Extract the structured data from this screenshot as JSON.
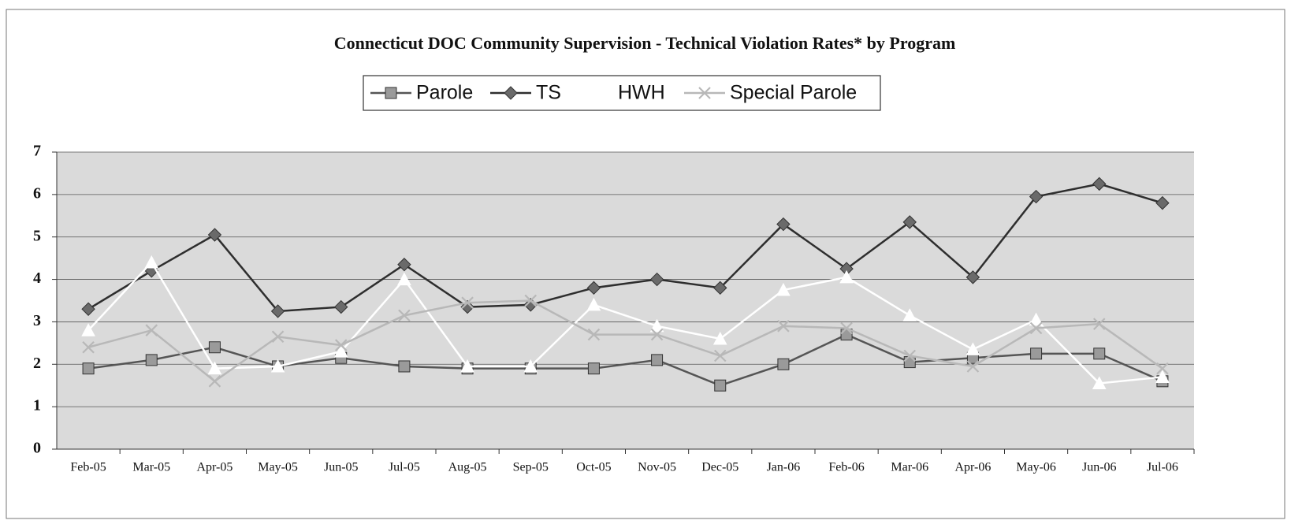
{
  "chart_data": {
    "type": "line",
    "title": "Connecticut DOC Community Supervision - Technical Violation Rates* by Program",
    "categories": [
      "Feb-05",
      "Mar-05",
      "Apr-05",
      "May-05",
      "Jun-05",
      "Jul-05",
      "Aug-05",
      "Sep-05",
      "Oct-05",
      "Nov-05",
      "Dec-05",
      "Jan-06",
      "Feb-06",
      "Mar-06",
      "Apr-06",
      "May-06",
      "Jun-06",
      "Jul-06"
    ],
    "series": [
      {
        "name": "Parole",
        "color": "#555555",
        "marker": "square",
        "marker_color": "#9a9a9a",
        "values": [
          1.9,
          2.1,
          2.4,
          1.95,
          2.15,
          1.95,
          1.9,
          1.9,
          1.9,
          2.1,
          1.5,
          2.0,
          2.7,
          2.05,
          2.15,
          2.25,
          2.25,
          1.6
        ]
      },
      {
        "name": "TS",
        "color": "#2e2e2e",
        "marker": "diamond",
        "marker_color": "#6a6a6a",
        "values": [
          3.3,
          4.2,
          5.05,
          3.25,
          3.35,
          4.35,
          3.35,
          3.4,
          3.8,
          4.0,
          3.8,
          5.3,
          4.25,
          5.35,
          4.05,
          5.95,
          6.25,
          5.8
        ]
      },
      {
        "name": "HWH",
        "color": "#ffffff",
        "marker": "triangle",
        "marker_color": "#ffffff",
        "values": [
          2.8,
          4.4,
          1.9,
          1.95,
          2.3,
          4.0,
          1.95,
          1.95,
          3.4,
          2.9,
          2.6,
          3.75,
          4.05,
          3.15,
          2.35,
          3.05,
          1.55,
          1.7
        ]
      },
      {
        "name": "Special Parole",
        "color": "#b8b8b8",
        "marker": "x",
        "marker_color": "#b8b8b8",
        "values": [
          2.4,
          2.8,
          1.6,
          2.65,
          2.45,
          3.15,
          3.45,
          3.5,
          2.7,
          2.7,
          2.2,
          2.9,
          2.85,
          2.2,
          1.95,
          2.85,
          2.95,
          1.9
        ]
      }
    ],
    "ylim": [
      0,
      7
    ],
    "yticks": [
      0,
      1,
      2,
      3,
      4,
      5,
      6,
      7
    ],
    "grid": true
  }
}
